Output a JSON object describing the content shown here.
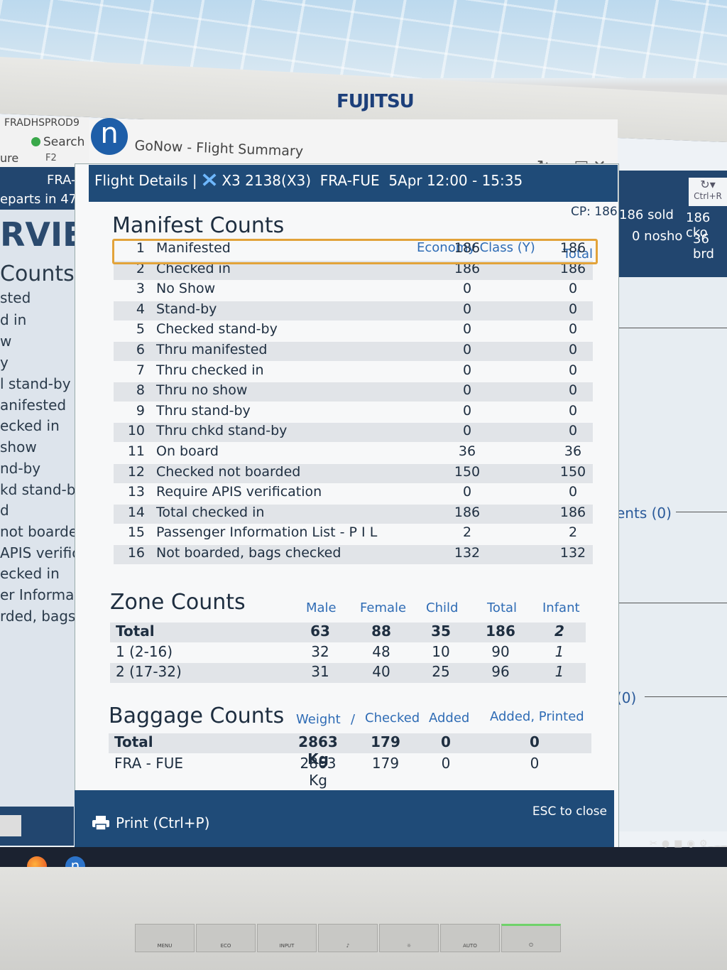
{
  "monitor": {
    "brand": "FUJITSU",
    "buttons": [
      "MENU",
      "ECO",
      "INPUT",
      "♪",
      "☼",
      "AUTO",
      "⏻"
    ]
  },
  "background_app": {
    "server": "FRADHSPROD9",
    "search_label": "Search",
    "f2": "F2",
    "ure": "ure",
    "route_prefix": "FRA-F",
    "departs": "eparts in 47",
    "big_label": "RVIE",
    "counts_label": "Counts",
    "list_items": [
      "sted",
      "d in",
      "w",
      "y",
      "l stand-by",
      "anifested",
      "ecked in",
      "show",
      "nd-by",
      "kd stand-by",
      "d",
      " not boarde",
      "APIS verific",
      "ecked in",
      "er Informat",
      "rded, bags c"
    ]
  },
  "right_panel": {
    "ctrl_r": "Ctrl+R",
    "sold": "186 sold",
    "ckd": "186 cko",
    "noshow": "0 nosho",
    "brd": "36 brd",
    "ents": "ents (0)",
    "zero": "(0)"
  },
  "window": {
    "app_name": "n",
    "title": "GoNow - Flight Summary",
    "controls": "―□✕"
  },
  "dialog": {
    "header": {
      "prefix": "Flight Details |",
      "flight": "X3 2138(X3)",
      "route": "FRA-FUE",
      "date_time": "5Apr 12:00 - 15:35"
    },
    "cp": "CP: 186",
    "manifest": {
      "title": "Manifest Counts",
      "col_econ": "Economy Class (Y)",
      "col_total": "Total",
      "rows": [
        {
          "n": "1",
          "label": "Manifested",
          "econ": "186",
          "total": "186"
        },
        {
          "n": "2",
          "label": "Checked in",
          "econ": "186",
          "total": "186"
        },
        {
          "n": "3",
          "label": "No Show",
          "econ": "0",
          "total": "0"
        },
        {
          "n": "4",
          "label": "Stand-by",
          "econ": "0",
          "total": "0"
        },
        {
          "n": "5",
          "label": "Checked stand-by",
          "econ": "0",
          "total": "0"
        },
        {
          "n": "6",
          "label": "Thru manifested",
          "econ": "0",
          "total": "0"
        },
        {
          "n": "7",
          "label": "Thru checked in",
          "econ": "0",
          "total": "0"
        },
        {
          "n": "8",
          "label": "Thru no show",
          "econ": "0",
          "total": "0"
        },
        {
          "n": "9",
          "label": "Thru stand-by",
          "econ": "0",
          "total": "0"
        },
        {
          "n": "10",
          "label": "Thru chkd stand-by",
          "econ": "0",
          "total": "0"
        },
        {
          "n": "11",
          "label": "On board",
          "econ": "36",
          "total": "36"
        },
        {
          "n": "12",
          "label": "Checked not boarded",
          "econ": "150",
          "total": "150"
        },
        {
          "n": "13",
          "label": "Require APIS verification",
          "econ": "0",
          "total": "0"
        },
        {
          "n": "14",
          "label": "Total checked in",
          "econ": "186",
          "total": "186"
        },
        {
          "n": "15",
          "label": "Passenger Information List - P I L",
          "econ": "2",
          "total": "2"
        },
        {
          "n": "16",
          "label": "Not boarded, bags checked",
          "econ": "132",
          "total": "132"
        }
      ]
    },
    "zone": {
      "title": "Zone Counts",
      "cols": [
        "Male",
        "Female",
        "Child",
        "Total",
        "Infant"
      ],
      "rows": [
        {
          "label": "Total",
          "male": "63",
          "female": "88",
          "child": "35",
          "total": "186",
          "infant": "2"
        },
        {
          "label": "1 (2-16)",
          "male": "32",
          "female": "48",
          "child": "10",
          "total": "90",
          "infant": "1"
        },
        {
          "label": "2 (17-32)",
          "male": "31",
          "female": "40",
          "child": "25",
          "total": "96",
          "infant": "1"
        }
      ]
    },
    "baggage": {
      "title": "Baggage Counts",
      "col_weight": "Weight",
      "col_sep": "/",
      "col_checked": "Checked",
      "col_added": "Added",
      "col_added_printed": "Added, Printed",
      "rows": [
        {
          "label": "Total",
          "weight": "2863 Kg",
          "checked": "179",
          "added": "0",
          "printed": "0"
        },
        {
          "label": "FRA - FUE",
          "weight": "2863 Kg",
          "checked": "179",
          "added": "0",
          "printed": "0"
        }
      ]
    },
    "footer": {
      "print": "Print (Ctrl+P)",
      "esc": "ESC to close"
    }
  }
}
